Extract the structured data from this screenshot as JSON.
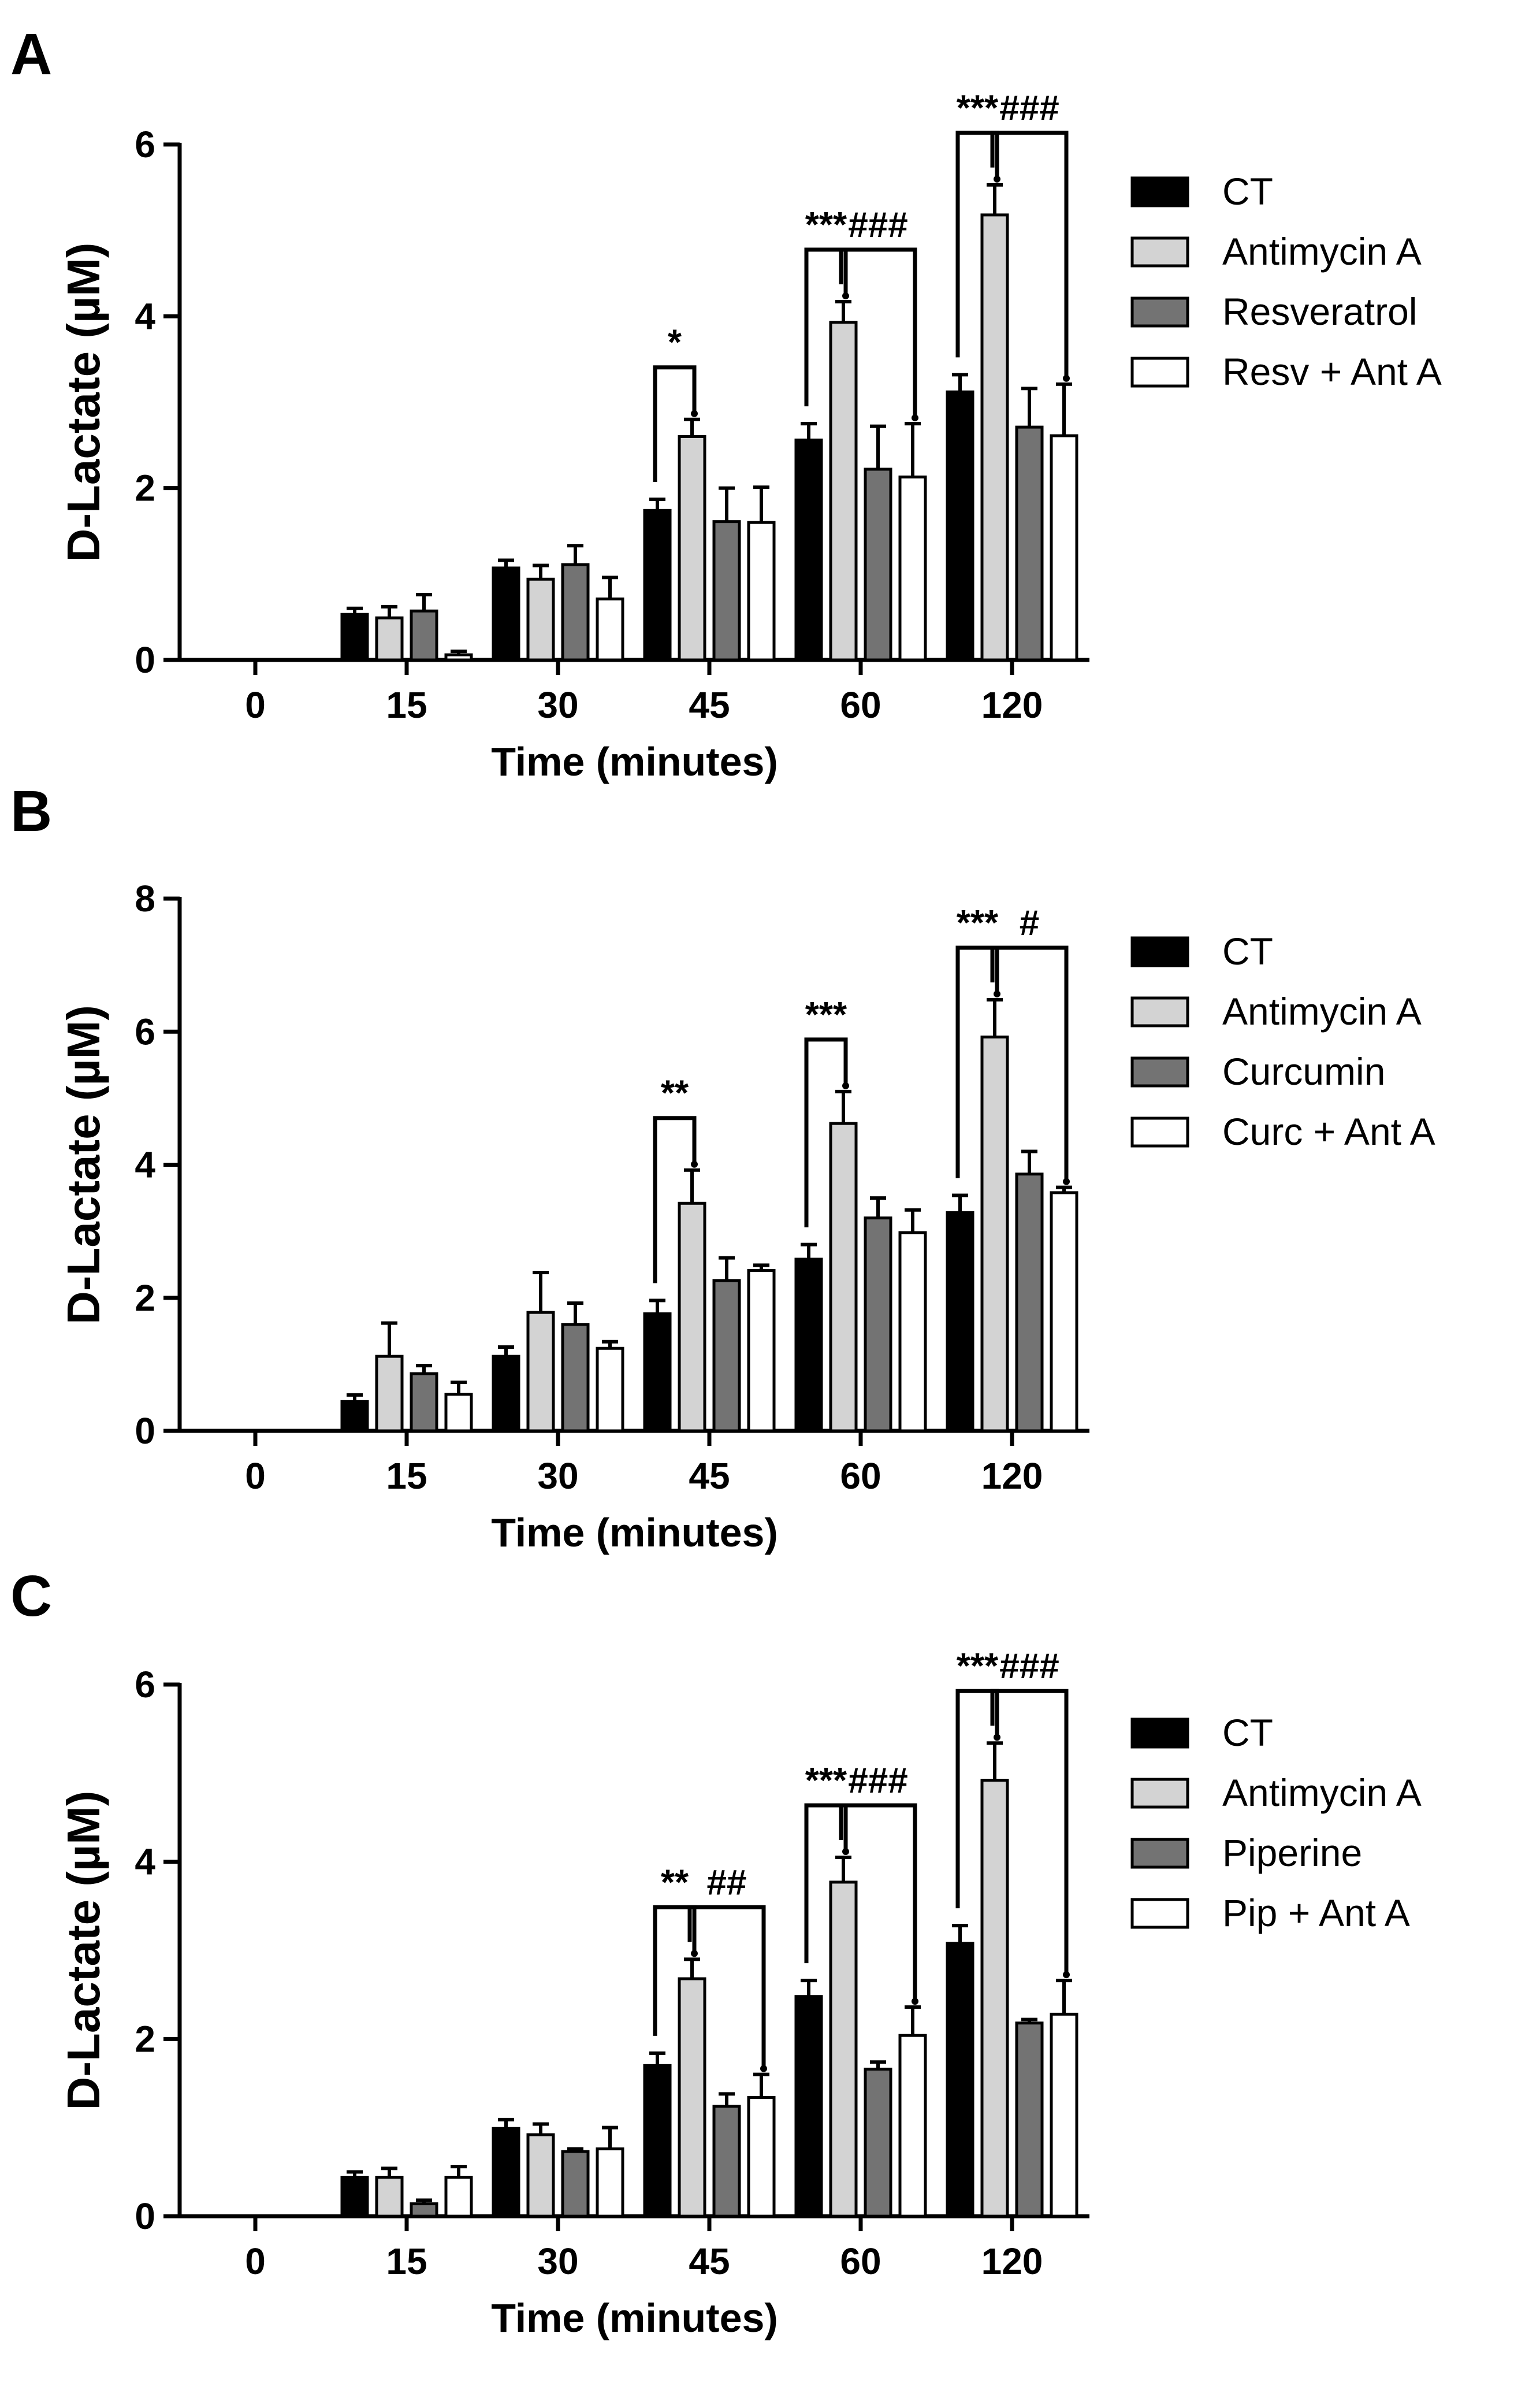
{
  "colors": {
    "ct": "#000000",
    "antimycin": "#d3d3d3",
    "treatment": "#737373",
    "combo": "#ffffff",
    "stroke": "#000000"
  },
  "chart_data": [
    {
      "type": "bar",
      "panel_label": "A",
      "title": "",
      "xlabel": "Time (minutes)",
      "ylabel": "D-Lactate (µM)",
      "ylim": [
        0,
        6
      ],
      "yticks": [
        0,
        2,
        4,
        6
      ],
      "categories": [
        "0",
        "15",
        "30",
        "45",
        "60",
        "120"
      ],
      "series": [
        {
          "name": "CT",
          "values": [
            0,
            0.53,
            1.07,
            1.74,
            2.56,
            3.12
          ],
          "errors": [
            0,
            0.07,
            0.09,
            0.13,
            0.19,
            0.2
          ]
        },
        {
          "name": "Antimycin A",
          "values": [
            0,
            0.49,
            0.94,
            2.6,
            3.93,
            5.18
          ],
          "errors": [
            0,
            0.13,
            0.16,
            0.2,
            0.24,
            0.35
          ]
        },
        {
          "name": "Resveratrol",
          "values": [
            0,
            0.57,
            1.11,
            1.61,
            2.22,
            2.71
          ],
          "errors": [
            0,
            0.19,
            0.22,
            0.39,
            0.5,
            0.45
          ]
        },
        {
          "name": "Resv + Ant A",
          "values": [
            0,
            0.06,
            0.71,
            1.6,
            2.13,
            2.61
          ],
          "errors": [
            0,
            0.04,
            0.25,
            0.41,
            0.62,
            0.6
          ]
        }
      ],
      "legend": {
        "position": "top-right",
        "entries": [
          "CT",
          "Antimycin A",
          "Resveratrol",
          "Resv + Ant A"
        ]
      },
      "annotations": [
        {
          "text": "*",
          "category": 3,
          "from": 0,
          "to": 1
        },
        {
          "text": "***",
          "category": 4,
          "from": 0,
          "to": 1
        },
        {
          "text": "###",
          "category": 4,
          "from": 1,
          "to": 3
        },
        {
          "text": "***",
          "category": 5,
          "from": 0,
          "to": 1
        },
        {
          "text": "###",
          "category": 5,
          "from": 1,
          "to": 3
        }
      ]
    },
    {
      "type": "bar",
      "panel_label": "B",
      "title": "",
      "xlabel": "Time (minutes)",
      "ylabel": "D-Lactate (µM)",
      "ylim": [
        0,
        8
      ],
      "yticks": [
        0,
        2,
        4,
        6,
        8
      ],
      "categories": [
        "0",
        "15",
        "30",
        "45",
        "60",
        "120"
      ],
      "series": [
        {
          "name": "CT",
          "values": [
            0,
            0.44,
            1.12,
            1.76,
            2.58,
            3.28
          ],
          "errors": [
            0,
            0.1,
            0.14,
            0.2,
            0.22,
            0.26
          ]
        },
        {
          "name": "Antimycin A",
          "values": [
            0,
            1.12,
            1.78,
            3.42,
            4.62,
            5.92
          ],
          "errors": [
            0,
            0.5,
            0.6,
            0.5,
            0.48,
            0.56
          ]
        },
        {
          "name": "Curcumin",
          "values": [
            0,
            0.86,
            1.6,
            2.26,
            3.2,
            3.86
          ],
          "errors": [
            0,
            0.12,
            0.32,
            0.34,
            0.3,
            0.34
          ]
        },
        {
          "name": "Curc + Ant A",
          "values": [
            0,
            0.55,
            1.24,
            2.41,
            2.98,
            3.58
          ],
          "errors": [
            0,
            0.18,
            0.1,
            0.08,
            0.34,
            0.08
          ]
        }
      ],
      "legend": {
        "position": "top-right",
        "entries": [
          "CT",
          "Antimycin A",
          "Curcumin",
          "Curc + Ant A"
        ]
      },
      "annotations": [
        {
          "text": "**",
          "category": 3,
          "from": 0,
          "to": 1
        },
        {
          "text": "***",
          "category": 4,
          "from": 0,
          "to": 1
        },
        {
          "text": "***",
          "category": 5,
          "from": 0,
          "to": 1
        },
        {
          "text": "#",
          "category": 5,
          "from": 1,
          "to": 3
        }
      ]
    },
    {
      "type": "bar",
      "panel_label": "C",
      "title": "",
      "xlabel": "Time (minutes)",
      "ylabel": "D-Lactate (µM)",
      "ylim": [
        0,
        6
      ],
      "yticks": [
        0,
        2,
        4,
        6
      ],
      "categories": [
        "0",
        "15",
        "30",
        "45",
        "60",
        "120"
      ],
      "series": [
        {
          "name": "CT",
          "values": [
            0,
            0.44,
            0.99,
            1.7,
            2.48,
            3.08
          ],
          "errors": [
            0,
            0.06,
            0.1,
            0.14,
            0.18,
            0.2
          ]
        },
        {
          "name": "Antimycin A",
          "values": [
            0,
            0.44,
            0.92,
            2.68,
            3.77,
            4.92
          ],
          "errors": [
            0,
            0.1,
            0.12,
            0.22,
            0.28,
            0.42
          ]
        },
        {
          "name": "Piperine",
          "values": [
            0,
            0.14,
            0.73,
            1.24,
            1.66,
            2.18
          ],
          "errors": [
            0,
            0.04,
            0.03,
            0.14,
            0.08,
            0.04
          ]
        },
        {
          "name": "Pip + Ant A",
          "values": [
            0,
            0.44,
            0.76,
            1.34,
            2.04,
            2.28
          ],
          "errors": [
            0,
            0.12,
            0.24,
            0.26,
            0.32,
            0.38
          ]
        }
      ],
      "legend": {
        "position": "top-right",
        "entries": [
          "CT",
          "Antimycin A",
          "Piperine",
          "Pip + Ant A"
        ]
      },
      "annotations": [
        {
          "text": "**",
          "category": 3,
          "from": 0,
          "to": 1
        },
        {
          "text": "##",
          "category": 3,
          "from": 1,
          "to": 3
        },
        {
          "text": "***",
          "category": 4,
          "from": 0,
          "to": 1
        },
        {
          "text": "###",
          "category": 4,
          "from": 1,
          "to": 3
        },
        {
          "text": "***",
          "category": 5,
          "from": 0,
          "to": 1
        },
        {
          "text": "###",
          "category": 5,
          "from": 1,
          "to": 3
        }
      ]
    }
  ]
}
